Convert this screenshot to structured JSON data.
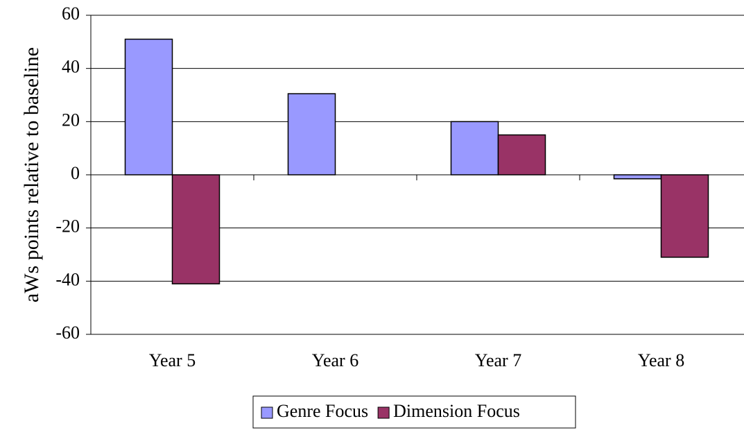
{
  "chart_data": {
    "type": "bar",
    "ylabel": "aWs points relative to baseline",
    "categories": [
      "Year 5",
      "Year 6",
      "Year 7",
      "Year 8"
    ],
    "series": [
      {
        "name": "Genre Focus",
        "color": "#9999ff",
        "values": [
          51,
          30.5,
          20,
          -1.5
        ]
      },
      {
        "name": "Dimension Focus",
        "color": "#993366",
        "values": [
          -41,
          null,
          15,
          -31
        ]
      }
    ],
    "ylim": [
      -60,
      60
    ],
    "yticks": [
      -60,
      -40,
      -20,
      0,
      20,
      40,
      60
    ],
    "grid": true,
    "legend": "bottom"
  }
}
